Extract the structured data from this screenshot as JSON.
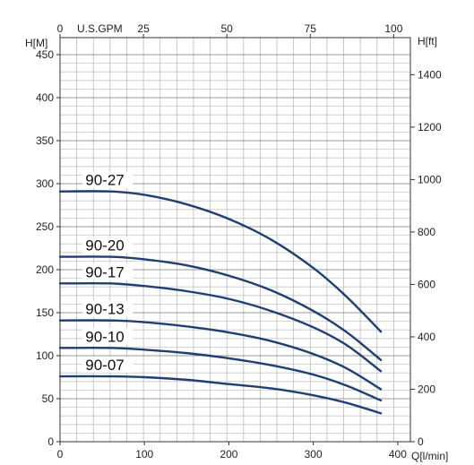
{
  "chart_data": {
    "type": "line",
    "xlabel": "Q[l/min]",
    "ylabel": "H[M]",
    "y2label": "H[ft]",
    "x2label": "U.S.GPM",
    "xlim": [
      0,
      400
    ],
    "ylim": [
      0,
      450
    ],
    "x_ticks": [
      0,
      100,
      200,
      300,
      400
    ],
    "y_ticks": [
      0,
      50,
      100,
      150,
      200,
      250,
      300,
      350,
      400,
      450
    ],
    "x2_ticks": [
      0,
      25,
      50,
      75,
      100
    ],
    "y2_ticks": [
      0,
      200,
      400,
      600,
      800,
      1000,
      1200,
      1400
    ],
    "grid": true,
    "line_color": "#1f3f73",
    "series": [
      {
        "name": "90-27",
        "x": [
          0,
          60,
          100,
          150,
          200,
          250,
          300,
          340,
          380
        ],
        "y": [
          291,
          291,
          287,
          276,
          259,
          235,
          202,
          168,
          128
        ]
      },
      {
        "name": "90-20",
        "x": [
          0,
          60,
          100,
          150,
          200,
          250,
          300,
          340,
          380
        ],
        "y": [
          215,
          215,
          212,
          205,
          193,
          176,
          152,
          127,
          95
        ]
      },
      {
        "name": "90-17",
        "x": [
          0,
          60,
          100,
          150,
          200,
          250,
          300,
          340,
          380
        ],
        "y": [
          184,
          184,
          181,
          175,
          166,
          152,
          133,
          112,
          82
        ]
      },
      {
        "name": "90-13",
        "x": [
          0,
          60,
          100,
          150,
          200,
          250,
          300,
          340,
          380
        ],
        "y": [
          141,
          141,
          139,
          134,
          127,
          117,
          102,
          85,
          61
        ]
      },
      {
        "name": "90-10",
        "x": [
          0,
          60,
          100,
          150,
          200,
          250,
          300,
          340,
          380
        ],
        "y": [
          109,
          109,
          107,
          103,
          97,
          89,
          78,
          65,
          48
        ]
      },
      {
        "name": "90-07",
        "x": [
          0,
          60,
          100,
          150,
          200,
          250,
          300,
          340,
          380
        ],
        "y": [
          76,
          76,
          75,
          72,
          67,
          62,
          54,
          45,
          33
        ]
      }
    ]
  }
}
